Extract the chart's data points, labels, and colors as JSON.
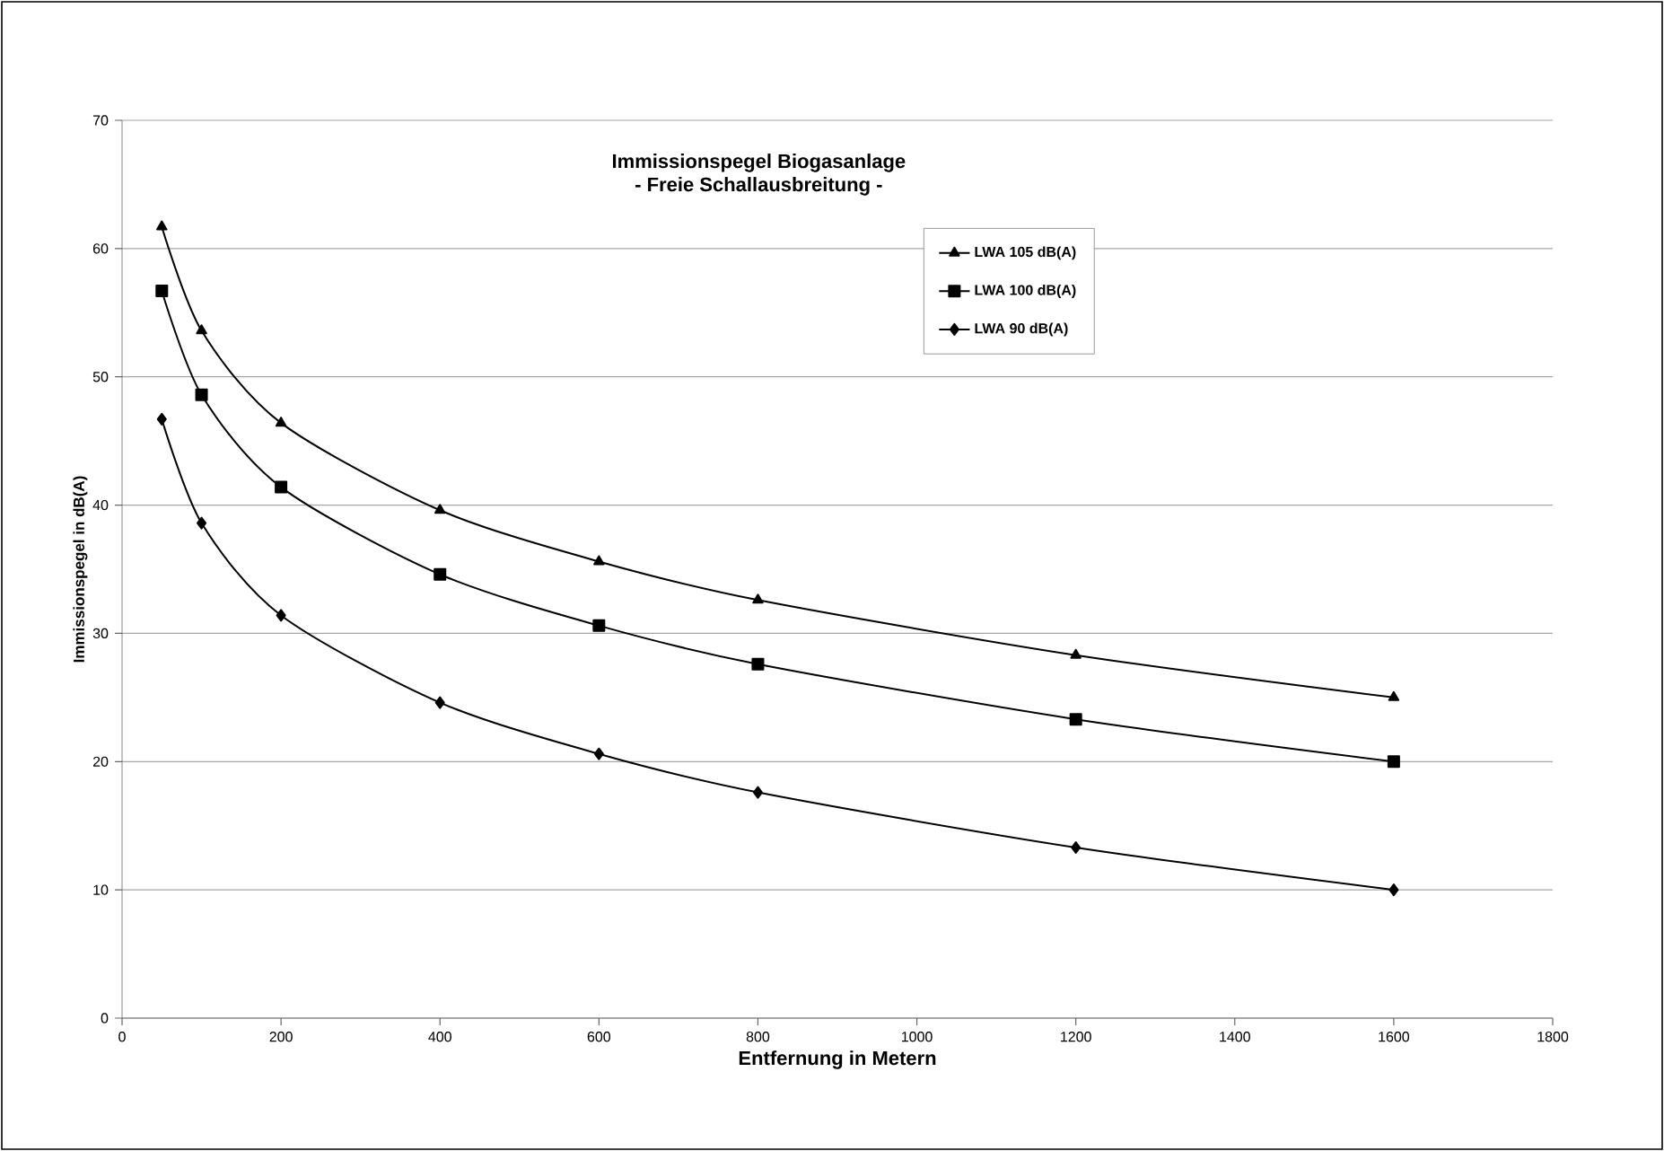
{
  "chart_data": {
    "type": "line",
    "title": "Immissionspegel Biogasanlage",
    "subtitle": "- Freie Schallausbreitung -",
    "xlabel": "Entfernung in Metern",
    "ylabel": "Immissionspegel in dB(A)",
    "x": [
      50,
      100,
      200,
      400,
      600,
      800,
      1200,
      1600
    ],
    "series": [
      {
        "name": "LWA 105 dB(A)",
        "color": "#000000",
        "marker": "triangle",
        "values": [
          61.7,
          53.6,
          46.4,
          39.6,
          35.6,
          32.6,
          28.3,
          25.0
        ]
      },
      {
        "name": "LWA 100 dB(A)",
        "color": "#000000",
        "marker": "square",
        "values": [
          56.7,
          48.6,
          41.4,
          34.6,
          30.6,
          27.6,
          23.3,
          20.0
        ]
      },
      {
        "name": "LWA 90 dB(A)",
        "color": "#000000",
        "marker": "diamond",
        "values": [
          46.7,
          38.6,
          31.4,
          24.6,
          20.6,
          17.6,
          13.3,
          10.0
        ]
      }
    ],
    "xlim": [
      0,
      1800
    ],
    "xticks": [
      0,
      200,
      400,
      600,
      800,
      1000,
      1200,
      1400,
      1600,
      1800
    ],
    "ylim": [
      0,
      70
    ],
    "yticks": [
      0,
      10,
      20,
      30,
      40,
      50,
      60,
      70
    ],
    "grid": "y",
    "legend": "top",
    "line_style": "solid"
  }
}
